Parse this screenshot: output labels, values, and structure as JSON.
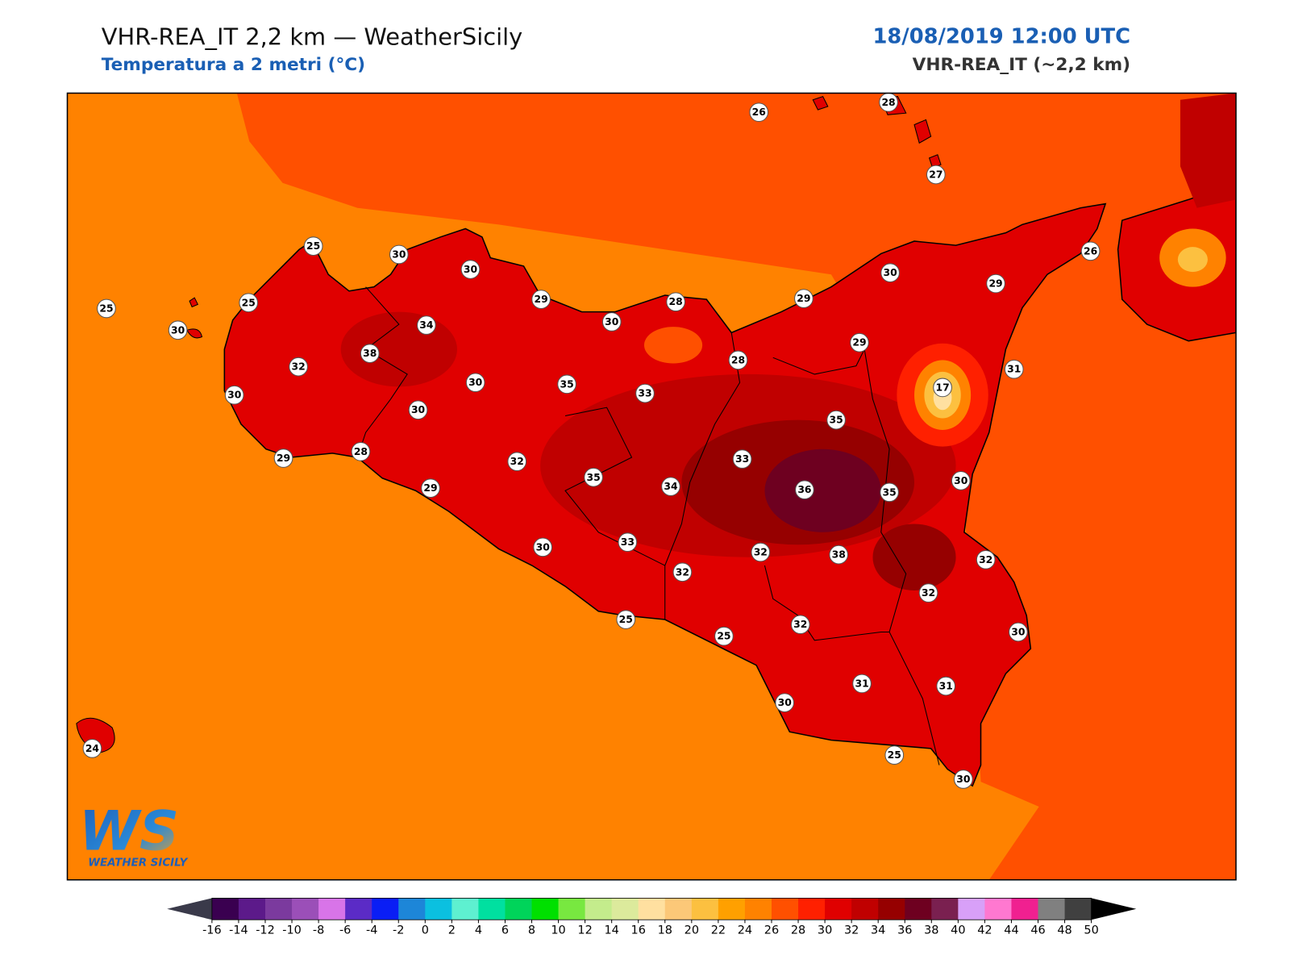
{
  "header": {
    "title": "VHR-REA_IT 2,2 km — WeatherSicily",
    "subtitle": "Temperatura a 2 metri (°C)",
    "datetime": "18/08/2019 12:00 UTC",
    "model": "VHR-REA_IT (~2,2 km)"
  },
  "stations": [
    26,
    28,
    27,
    25,
    30,
    30,
    26,
    30,
    29,
    25,
    25,
    29,
    28,
    29,
    30,
    30,
    34,
    29,
    38,
    32,
    28,
    31,
    30,
    35,
    33,
    17,
    30,
    30,
    35,
    29,
    28,
    32,
    33,
    30,
    35,
    34,
    36,
    35,
    29,
    30,
    33,
    32,
    38,
    32,
    32,
    32,
    25,
    32,
    30,
    25,
    31,
    31,
    30,
    24,
    25,
    30
  ],
  "colorbar": {
    "ticks": [
      -16,
      -14,
      -12,
      -10,
      -8,
      -6,
      -4,
      -2,
      0,
      2,
      4,
      6,
      8,
      10,
      12,
      14,
      16,
      18,
      20,
      22,
      24,
      26,
      28,
      30,
      32,
      34,
      36,
      38,
      40,
      42,
      44,
      46,
      48,
      50
    ],
    "colors": [
      "#3a0050",
      "#5c1a8a",
      "#7b3a9e",
      "#9b4fb8",
      "#d874e8",
      "#5b2bc6",
      "#0a1ef5",
      "#1d86d8",
      "#0bc0e0",
      "#5ef0d0",
      "#00e0a0",
      "#00d45a",
      "#00e000",
      "#78e840",
      "#c4ec8c",
      "#dcea9c",
      "#ffe0a0",
      "#fcc878",
      "#fcc040",
      "#ffa000",
      "#ff8200",
      "#ff5000",
      "#ff2000",
      "#e00000",
      "#c00000",
      "#960000",
      "#6e0020",
      "#7a2050",
      "#d8a0f8",
      "#ff78d0",
      "#f02090",
      "#808080",
      "#404040"
    ],
    "extend_colors": [
      "#3a3a4a",
      "#000000"
    ]
  },
  "logo": {
    "mark": "WS",
    "name": "WEATHER SICILY"
  }
}
